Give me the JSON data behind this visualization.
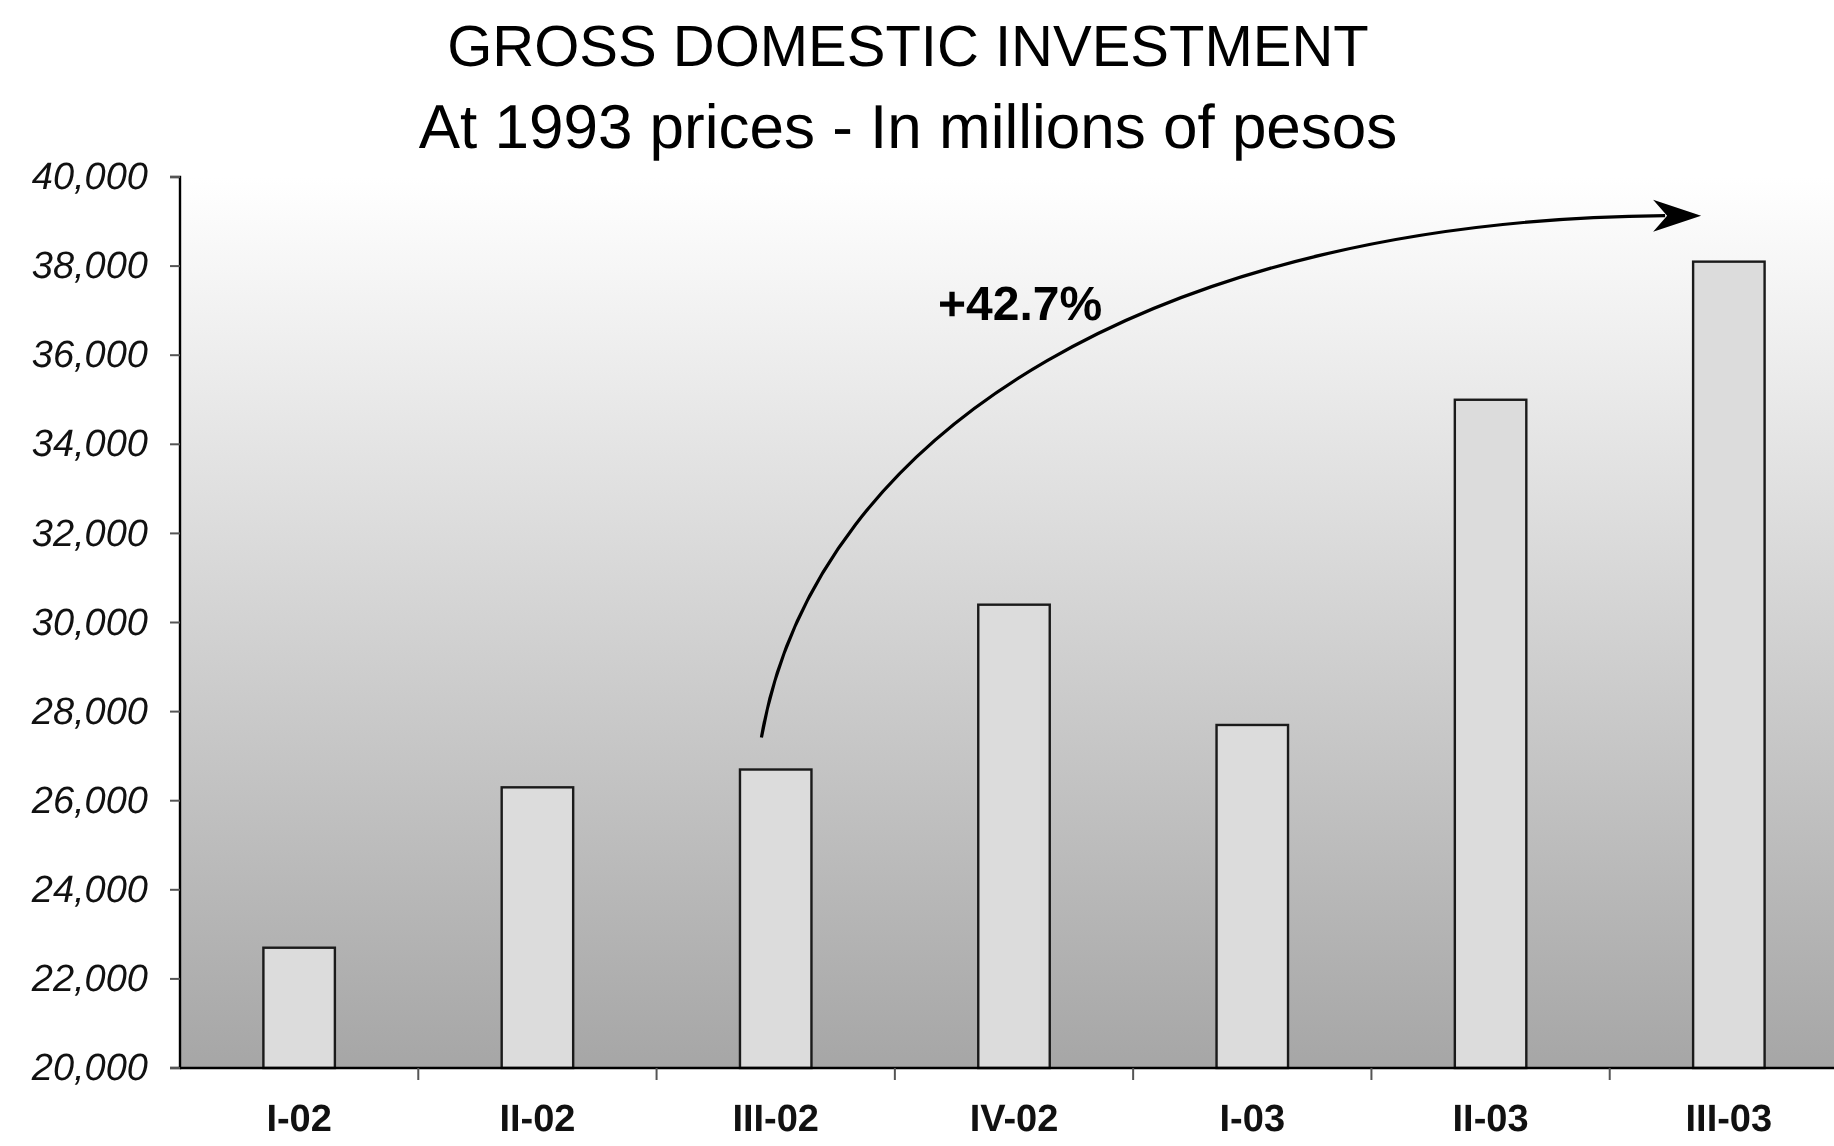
{
  "chart_data": {
    "type": "bar",
    "title": "GROSS DOMESTIC INVESTMENT",
    "subtitle": "At 1993 prices - In millions of pesos",
    "categories": [
      "I-02",
      "II-02",
      "III-02",
      "IV-02",
      "I-03",
      "II-03",
      "III-03"
    ],
    "values": [
      22700,
      26300,
      26700,
      30400,
      27700,
      35000,
      38100
    ],
    "color": "#dcdcdc",
    "ylim": [
      20000,
      40000
    ],
    "yticks": [
      {
        "value": 20000,
        "label": "20,000"
      },
      {
        "value": 22000,
        "label": "22,000"
      },
      {
        "value": 24000,
        "label": "24,000"
      },
      {
        "value": 26000,
        "label": "26,000"
      },
      {
        "value": 28000,
        "label": "28,000"
      },
      {
        "value": 30000,
        "label": "30,000"
      },
      {
        "value": 32000,
        "label": "32,000"
      },
      {
        "value": 34000,
        "label": "34,000"
      },
      {
        "value": 36000,
        "label": "36,000"
      },
      {
        "value": 38000,
        "label": "38,000"
      },
      {
        "value": 40000,
        "label": "40,000"
      }
    ],
    "annotations": [
      "+42.7%"
    ]
  }
}
